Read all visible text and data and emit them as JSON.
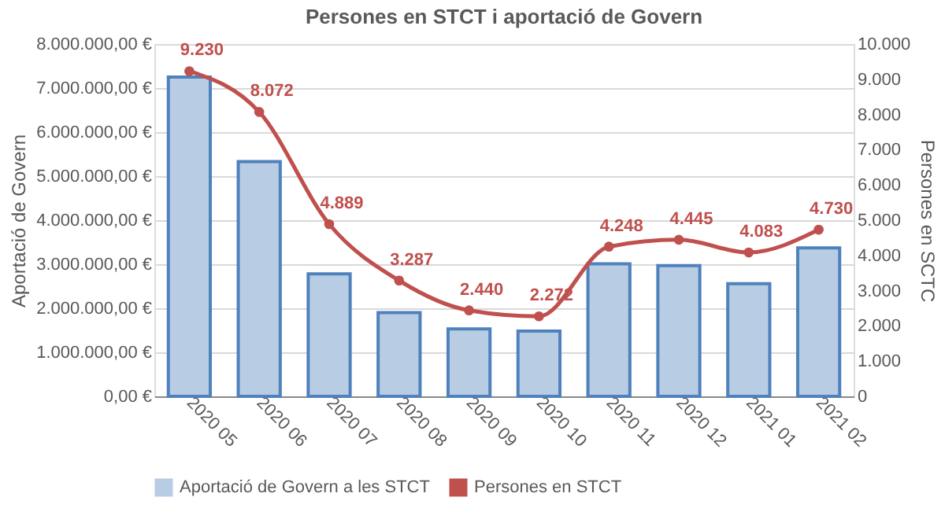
{
  "chart_data": {
    "type": "bar",
    "title": "Persones en STCT i aportació de Govern",
    "categories": [
      "2020 05",
      "2020 06",
      "2020 07",
      "2020 08",
      "2020 09",
      "2020 10",
      "2020 11",
      "2020 12",
      "2021 01",
      "2021 02"
    ],
    "series": [
      {
        "name": "Aportació de Govern a les STCT",
        "color": "#b8cce4",
        "values": [
          7250000,
          5330000,
          2780000,
          1900000,
          1530000,
          1480000,
          3010000,
          2970000,
          2560000,
          3370000
        ]
      },
      {
        "name": "Persones en STCT",
        "type": "line",
        "axis": "y2",
        "color": "#c0504d",
        "marker": "circle",
        "values": [
          9230,
          8072,
          4889,
          3287,
          2440,
          2272,
          4248,
          4445,
          4083,
          4730
        ],
        "value_labels": [
          "9.230",
          "8.072",
          "4.889",
          "3.287",
          "2.440",
          "2.272",
          "4.248",
          "4.445",
          "4.083",
          "4.730"
        ]
      }
    ],
    "ylabel": "Aportació de Govern",
    "y2label": "Persones en SCTC",
    "ylim": [
      0,
      8000000
    ],
    "yticks": [
      {
        "value": 0,
        "label": "0,00 €"
      },
      {
        "value": 1000000,
        "label": "1.000.000,00 €"
      },
      {
        "value": 2000000,
        "label": "2.000.000,00 €"
      },
      {
        "value": 3000000,
        "label": "3.000.000,00 €"
      },
      {
        "value": 4000000,
        "label": "4.000.000,00 €"
      },
      {
        "value": 5000000,
        "label": "5.000.000,00 €"
      },
      {
        "value": 6000000,
        "label": "6.000.000,00 €"
      },
      {
        "value": 7000000,
        "label": "7.000.000,00 €"
      },
      {
        "value": 8000000,
        "label": "8.000.000,00 €"
      }
    ],
    "y2lim": [
      0,
      10000
    ],
    "y2ticks": [
      0,
      {
        "value": 1000,
        "label": "1.000"
      },
      {
        "value": 2000,
        "label": "2.000"
      },
      {
        "value": 3000,
        "label": "3.000"
      },
      {
        "value": 4000,
        "label": "4.000"
      },
      {
        "value": 5000,
        "label": "5.000"
      },
      {
        "value": 6000,
        "label": "6.000"
      },
      {
        "value": 7000,
        "label": "7.000"
      },
      {
        "value": 8000,
        "label": "8.000"
      },
      {
        "value": 9000,
        "label": "9.000"
      },
      {
        "value": 10000,
        "label": "10.000"
      }
    ],
    "grid": "y",
    "legend": "bottom"
  }
}
